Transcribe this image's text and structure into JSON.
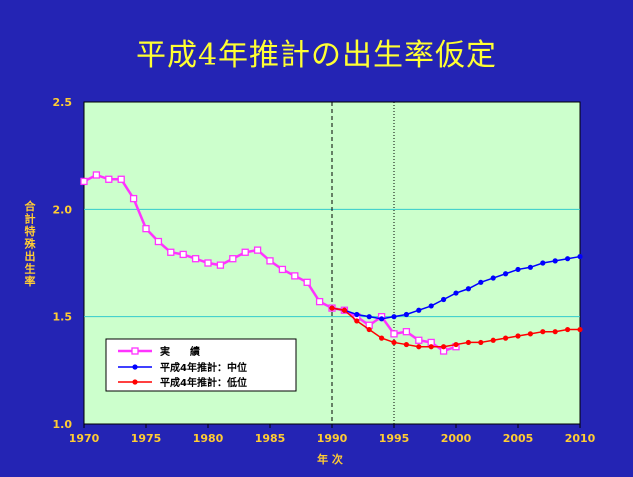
{
  "title": "平成4年推計の出生率仮定",
  "colors": {
    "background": "#2424b4",
    "plot_bg": "#ccffcc",
    "title": "#ffff33",
    "labels": "#ffcc33",
    "actual": "#ff33ff",
    "middle": "#0000ff",
    "low": "#ff0000",
    "gridline": "#33cccc"
  },
  "chart_data": {
    "type": "line",
    "xlabel": "年 次",
    "ylabel": "合計特殊出生率",
    "xlim": [
      1970,
      2010
    ],
    "ylim": [
      1.0,
      2.5
    ],
    "xticks": [
      "1970",
      "1975",
      "1980",
      "1985",
      "1990",
      "1995",
      "2000",
      "2005",
      "2010"
    ],
    "yticks": [
      "1.0",
      "1.5",
      "2.0",
      "2.5"
    ],
    "gridlines_y": [
      1.5,
      2.0
    ],
    "vlines": [
      1990,
      1995
    ],
    "series": [
      {
        "name": "実　　績",
        "key": "actual",
        "marker": "square",
        "x": [
          1970,
          1971,
          1972,
          1973,
          1974,
          1975,
          1976,
          1977,
          1978,
          1979,
          1980,
          1981,
          1982,
          1983,
          1984,
          1985,
          1986,
          1987,
          1988,
          1989,
          1990,
          1991,
          1992,
          1993,
          1994,
          1995,
          1996,
          1997,
          1998,
          1999,
          2000
        ],
        "y": [
          2.13,
          2.16,
          2.14,
          2.14,
          2.05,
          1.91,
          1.85,
          1.8,
          1.79,
          1.77,
          1.75,
          1.74,
          1.77,
          1.8,
          1.81,
          1.76,
          1.72,
          1.69,
          1.66,
          1.57,
          1.54,
          1.53,
          1.5,
          1.46,
          1.5,
          1.42,
          1.43,
          1.39,
          1.38,
          1.34,
          1.36
        ]
      },
      {
        "name": "平成4年推計：中位",
        "key": "middle",
        "marker": "circle",
        "x": [
          1990,
          1991,
          1992,
          1993,
          1994,
          1995,
          1996,
          1997,
          1998,
          1999,
          2000,
          2001,
          2002,
          2003,
          2004,
          2005,
          2006,
          2007,
          2008,
          2009,
          2010
        ],
        "y": [
          1.54,
          1.53,
          1.51,
          1.5,
          1.49,
          1.5,
          1.51,
          1.53,
          1.55,
          1.58,
          1.61,
          1.63,
          1.66,
          1.68,
          1.7,
          1.72,
          1.73,
          1.75,
          1.76,
          1.77,
          1.78
        ]
      },
      {
        "name": "平成4年推計：低位",
        "key": "low",
        "marker": "circle",
        "x": [
          1990,
          1991,
          1992,
          1993,
          1994,
          1995,
          1996,
          1997,
          1998,
          1999,
          2000,
          2001,
          2002,
          2003,
          2004,
          2005,
          2006,
          2007,
          2008,
          2009,
          2010
        ],
        "y": [
          1.54,
          1.53,
          1.48,
          1.44,
          1.4,
          1.38,
          1.37,
          1.36,
          1.36,
          1.36,
          1.37,
          1.38,
          1.38,
          1.39,
          1.4,
          1.41,
          1.42,
          1.43,
          1.43,
          1.44,
          1.44
        ]
      }
    ]
  }
}
